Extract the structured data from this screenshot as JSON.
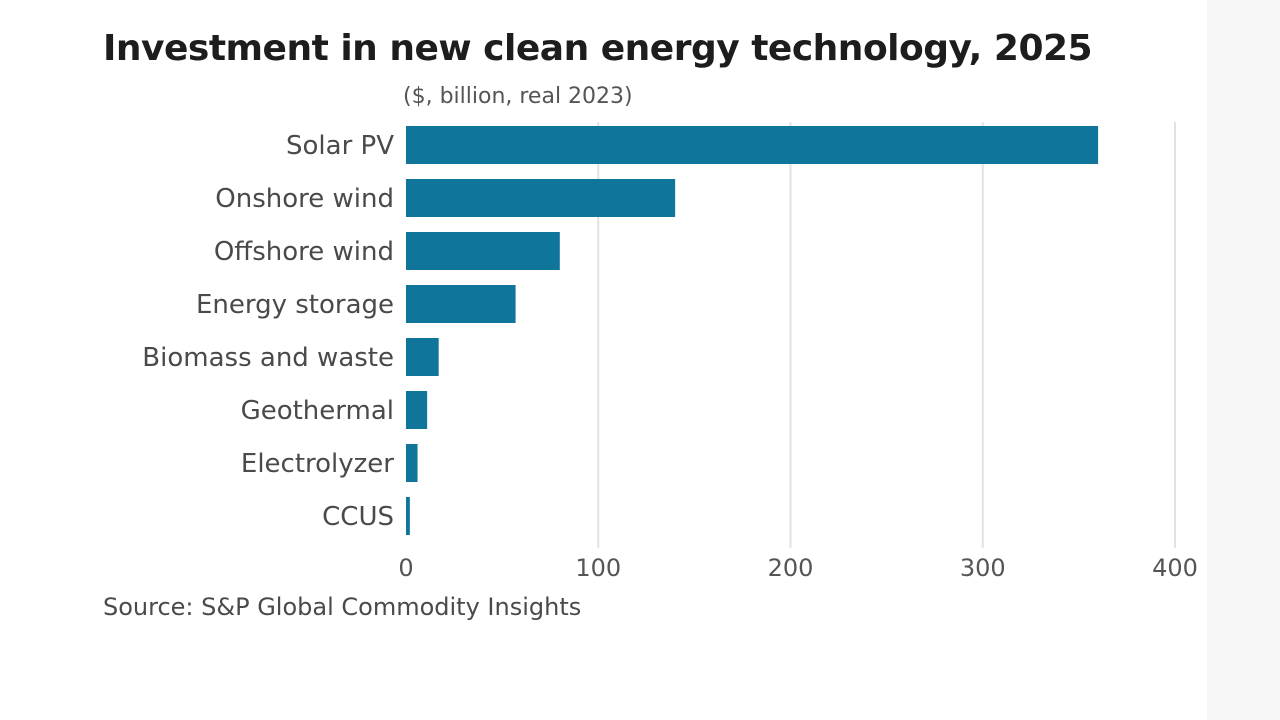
{
  "chart_data": {
    "type": "bar",
    "orientation": "horizontal",
    "title": "Investment in new clean energy technology, 2025",
    "subtitle": "($, billion, real 2023)",
    "source": "Source: S&P Global Commodity Insights",
    "categories": [
      "Solar PV",
      "Onshore wind",
      "Offshore wind",
      "Energy storage",
      "Biomass and waste",
      "Geothermal",
      "Electrolyzer",
      "CCUS"
    ],
    "values": [
      360,
      140,
      80,
      57,
      17,
      11,
      6,
      2
    ],
    "xlim": [
      0,
      400
    ],
    "xticks": [
      0,
      100,
      200,
      300,
      400
    ],
    "xlabel": "",
    "ylabel": "",
    "grid": "vertical",
    "bar_color": "#10759a"
  }
}
